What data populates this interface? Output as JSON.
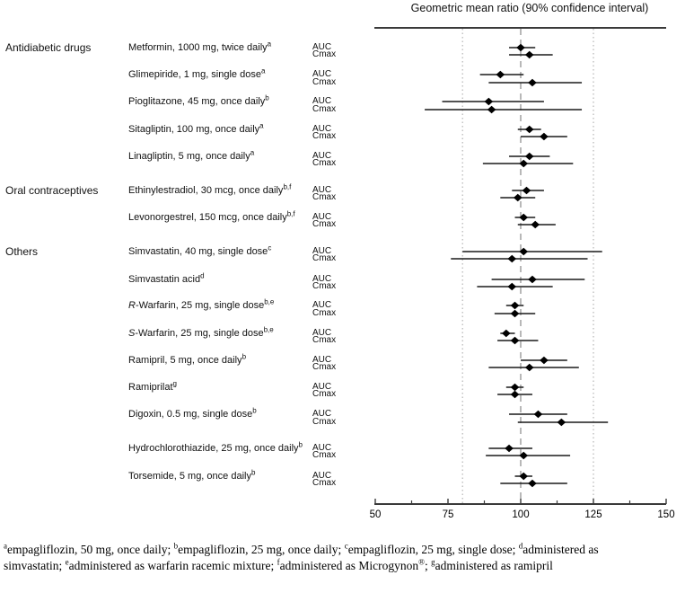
{
  "title": "Geometric mean ratio (90% confidence interval)",
  "row_labels": {
    "auc": "AUC",
    "cmax": "Cmax"
  },
  "axis": {
    "range": [
      50,
      150
    ],
    "major_ticks": [
      50,
      75,
      100,
      125,
      150
    ],
    "minor_ticks": [
      62.5,
      87.5,
      112.5,
      137.5
    ],
    "ref_line_dashed": 100,
    "ref_lines_dotted": [
      80,
      125
    ]
  },
  "colors": {
    "marker": "#000000",
    "ci_line": "#1a1a1a",
    "axis": "#3a3a3a",
    "ref_dashed": "#8a8a8a",
    "ref_dotted": "#b5b5b5",
    "text": "#111111"
  },
  "chart_data": {
    "type": "forest",
    "unit": "Geometric mean ratio, % (90% CI)",
    "groups": [
      {
        "category": "Antidiabetic drugs",
        "drugs": [
          {
            "label": "Metformin, 1000 mg, twice daily",
            "italic_prefix": "",
            "sup": "a",
            "auc": {
              "value": 100,
              "lo": 96,
              "hi": 105
            },
            "cmax": {
              "value": 103,
              "lo": 96,
              "hi": 111
            }
          },
          {
            "label": "Glimepiride, 1 mg, single dose",
            "italic_prefix": "",
            "sup": "a",
            "auc": {
              "value": 93,
              "lo": 86,
              "hi": 101
            },
            "cmax": {
              "value": 104,
              "lo": 89,
              "hi": 121
            }
          },
          {
            "label": "Pioglitazone, 45 mg, once daily",
            "italic_prefix": "",
            "sup": "b",
            "auc": {
              "value": 89,
              "lo": 73,
              "hi": 108
            },
            "cmax": {
              "value": 90,
              "lo": 67,
              "hi": 121
            }
          },
          {
            "label": "Sitagliptin, 100 mg, once daily",
            "italic_prefix": "",
            "sup": "a",
            "auc": {
              "value": 103,
              "lo": 99,
              "hi": 107
            },
            "cmax": {
              "value": 108,
              "lo": 100,
              "hi": 116
            }
          },
          {
            "label": "Linagliptin, 5 mg, once daily",
            "italic_prefix": "",
            "sup": "a",
            "auc": {
              "value": 103,
              "lo": 96,
              "hi": 110
            },
            "cmax": {
              "value": 101,
              "lo": 87,
              "hi": 118
            }
          }
        ]
      },
      {
        "category": "Oral contraceptives",
        "drugs": [
          {
            "label": "Ethinylestradiol, 30 mcg, once daily",
            "italic_prefix": "",
            "sup": "b,f",
            "auc": {
              "value": 102,
              "lo": 97,
              "hi": 108
            },
            "cmax": {
              "value": 99,
              "lo": 93,
              "hi": 105
            }
          },
          {
            "label": "Levonorgestrel, 150 mcg, once daily",
            "italic_prefix": "",
            "sup": "b,f",
            "auc": {
              "value": 101,
              "lo": 98,
              "hi": 105
            },
            "cmax": {
              "value": 105,
              "lo": 99,
              "hi": 112
            }
          }
        ]
      },
      {
        "category": "Others",
        "drugs": [
          {
            "label": "Simvastatin, 40 mg, single dose",
            "italic_prefix": "",
            "sup": "c",
            "auc": {
              "value": 101,
              "lo": 80,
              "hi": 128
            },
            "cmax": {
              "value": 97,
              "lo": 76,
              "hi": 123
            }
          },
          {
            "label": "Simvastatin acid",
            "italic_prefix": "",
            "sup": "d",
            "auc": {
              "value": 104,
              "lo": 90,
              "hi": 122
            },
            "cmax": {
              "value": 97,
              "lo": 85,
              "hi": 111
            }
          },
          {
            "label": "-Warfarin, 25 mg, single dose",
            "italic_prefix": "R",
            "sup": "b,e",
            "auc": {
              "value": 98,
              "lo": 95,
              "hi": 101
            },
            "cmax": {
              "value": 98,
              "lo": 91,
              "hi": 105
            }
          },
          {
            "label": "-Warfarin, 25 mg, single dose",
            "italic_prefix": "S",
            "sup": "b,e",
            "auc": {
              "value": 95,
              "lo": 93,
              "hi": 98
            },
            "cmax": {
              "value": 98,
              "lo": 92,
              "hi": 106
            }
          },
          {
            "label": "Ramipril, 5 mg, once daily",
            "italic_prefix": "",
            "sup": "b",
            "auc": {
              "value": 108,
              "lo": 100,
              "hi": 116
            },
            "cmax": {
              "value": 103,
              "lo": 89,
              "hi": 120
            }
          },
          {
            "label": "Ramiprilat",
            "italic_prefix": "",
            "sup": "g",
            "auc": {
              "value": 98,
              "lo": 95,
              "hi": 101
            },
            "cmax": {
              "value": 98,
              "lo": 92,
              "hi": 104
            }
          },
          {
            "label": "Digoxin, 0.5 mg, single dose",
            "italic_prefix": "",
            "sup": "b",
            "auc": {
              "value": 106,
              "lo": 96,
              "hi": 116
            },
            "cmax": {
              "value": 114,
              "lo": 99,
              "hi": 130
            }
          },
          {
            "label": "Hydrochlorothiazide, 25 mg, once daily",
            "italic_prefix": "",
            "sup": "b",
            "auc": {
              "value": 96,
              "lo": 89,
              "hi": 104
            },
            "cmax": {
              "value": 101,
              "lo": 88,
              "hi": 117
            }
          },
          {
            "label": "Torsemide, 5 mg, once daily",
            "italic_prefix": "",
            "sup": "b",
            "auc": {
              "value": 101,
              "lo": 98,
              "hi": 104
            },
            "cmax": {
              "value": 104,
              "lo": 93,
              "hi": 116
            }
          }
        ]
      }
    ]
  },
  "footnote": {
    "lines": [
      [
        {
          "sup": "a",
          "text": "empagliflozin, 50 mg, once daily; "
        },
        {
          "sup": "b",
          "text": "empagliflozin, 25 mg, once daily; "
        },
        {
          "sup": "c",
          "text": "empagliflozin, 25 mg, single dose; "
        },
        {
          "sup": "d",
          "text": "administered as"
        }
      ],
      [
        {
          "sup": "",
          "text": "simvastatin; "
        },
        {
          "sup": "e",
          "text": "administered as warfarin racemic mixture; "
        },
        {
          "sup": "f",
          "text": "administered as Microgynon"
        },
        {
          "sup": "®",
          "text": "; "
        },
        {
          "sup": "g",
          "text": "administered as ramipril"
        }
      ]
    ]
  }
}
